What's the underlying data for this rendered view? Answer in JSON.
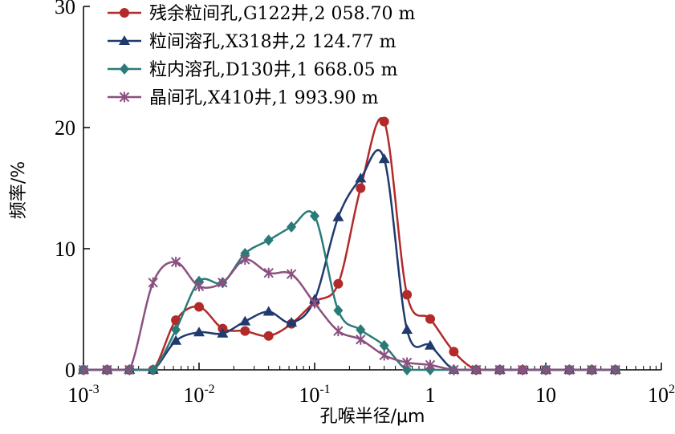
{
  "chart_data": {
    "type": "line",
    "xlabel": "孔喉半径/μm",
    "ylabel": "频率/%",
    "x_scale": "log",
    "xlim": [
      0.001,
      100
    ],
    "ylim": [
      0,
      30
    ],
    "x_ticks": [
      {
        "value": 0.001,
        "base": "10",
        "exp": "-3"
      },
      {
        "value": 0.01,
        "base": "10",
        "exp": "-2"
      },
      {
        "value": 0.1,
        "base": "10",
        "exp": "-1"
      },
      {
        "value": 1,
        "base": "1",
        "exp": ""
      },
      {
        "value": 10,
        "base": "10",
        "exp": ""
      },
      {
        "value": 100,
        "base": "10",
        "exp": "2"
      }
    ],
    "y_ticks": [
      0,
      10,
      20,
      30
    ],
    "grid": false,
    "legend_position": "top-left",
    "series": [
      {
        "name": "残余粒间孔,G122井,2 058.70 m",
        "color": "#b22a2a",
        "marker": "circle",
        "x": [
          0.001,
          0.0016,
          0.0025,
          0.004,
          0.0063,
          0.01,
          0.016,
          0.025,
          0.04,
          0.063,
          0.1,
          0.16,
          0.25,
          0.4,
          0.63,
          1,
          1.6,
          2.5,
          4,
          6.3,
          10,
          16,
          25,
          40
        ],
        "y": [
          0,
          0,
          0,
          0,
          4.1,
          5.2,
          3.4,
          3.2,
          2.8,
          3.8,
          5.6,
          7.1,
          15,
          20.5,
          6.2,
          4.2,
          1.5,
          0,
          0,
          0,
          0,
          0,
          0,
          0
        ]
      },
      {
        "name": "粒间溶孔,X318井,2 124.77 m",
        "color": "#1f3a6e",
        "marker": "triangle",
        "x": [
          0.001,
          0.0016,
          0.0025,
          0.004,
          0.0063,
          0.01,
          0.016,
          0.025,
          0.04,
          0.063,
          0.1,
          0.16,
          0.25,
          0.4,
          0.63,
          1,
          1.6,
          2.5,
          4,
          6.3,
          10,
          16,
          25,
          40
        ],
        "y": [
          0,
          0,
          0,
          0,
          2.4,
          3.1,
          3.0,
          4.0,
          4.8,
          3.9,
          5.8,
          12.6,
          15.8,
          17.4,
          3.3,
          2.0,
          0,
          0,
          0,
          0,
          0,
          0,
          0,
          0
        ]
      },
      {
        "name": "粒内溶孔,D130井,1 668.05 m",
        "color": "#2a7a78",
        "marker": "diamond",
        "x": [
          0.001,
          0.0016,
          0.0025,
          0.004,
          0.0063,
          0.01,
          0.016,
          0.025,
          0.04,
          0.063,
          0.1,
          0.16,
          0.25,
          0.4,
          0.63,
          1,
          1.6,
          2.5,
          4,
          6.3,
          10,
          16,
          25,
          40
        ],
        "y": [
          0,
          0,
          0,
          0,
          3.3,
          7.3,
          7.2,
          9.6,
          10.7,
          11.8,
          12.7,
          4.9,
          3.3,
          2.0,
          0,
          0,
          0,
          0,
          0,
          0,
          0,
          0,
          0,
          0
        ]
      },
      {
        "name": "晶间孔,X410井,1 993.90 m",
        "color": "#8a5080",
        "marker": "star",
        "x": [
          0.001,
          0.0016,
          0.0025,
          0.004,
          0.0063,
          0.01,
          0.016,
          0.025,
          0.04,
          0.063,
          0.1,
          0.16,
          0.25,
          0.4,
          0.63,
          1,
          1.6,
          2.5,
          4,
          6.3,
          10,
          16,
          25,
          40
        ],
        "y": [
          0,
          0,
          0,
          7.2,
          8.9,
          6.9,
          7.2,
          9.1,
          8.0,
          7.9,
          5.5,
          3.2,
          2.5,
          1.2,
          0.6,
          0.4,
          0,
          0,
          0,
          0,
          0,
          0,
          0,
          0
        ]
      }
    ]
  }
}
